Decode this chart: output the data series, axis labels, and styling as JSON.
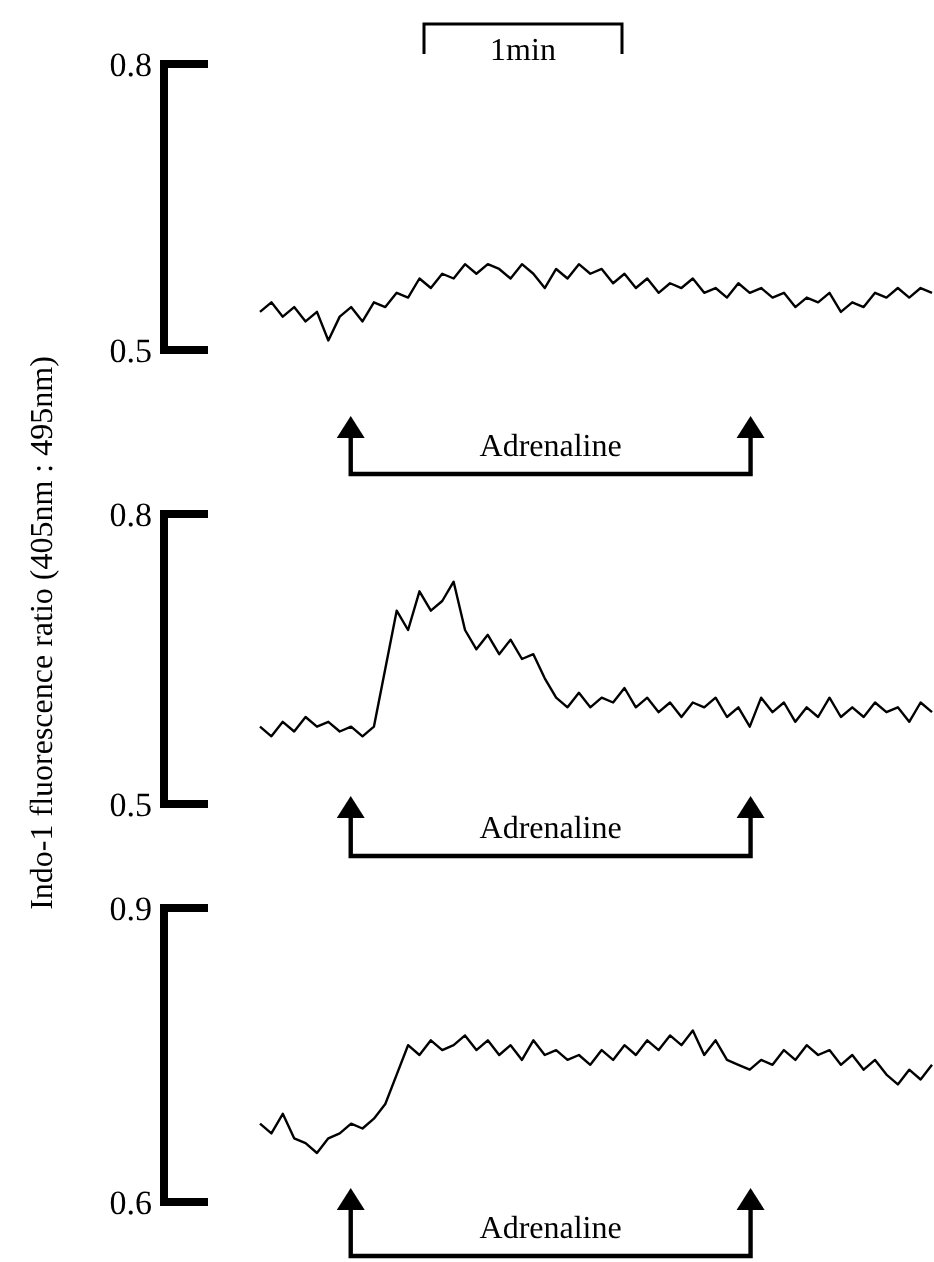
{
  "chart_data": [
    {
      "type": "line",
      "ylabel": "Indo-1 fluorescence ratio (405nm : 495nm)",
      "annotations": [
        "1min",
        "Adrenaline"
      ],
      "categories": [
        null,
        null,
        null,
        null,
        null,
        null,
        null,
        null,
        null,
        null,
        null,
        null,
        null,
        null,
        null,
        null,
        null,
        null,
        null,
        null,
        null,
        null,
        null,
        null,
        null,
        null,
        null,
        null,
        null,
        null,
        null,
        null,
        null,
        null,
        null,
        null,
        null,
        null,
        null,
        null,
        null,
        null,
        null,
        null,
        null,
        null,
        null,
        null,
        null,
        null,
        null,
        null,
        null,
        null,
        null,
        null,
        null,
        null,
        null,
        null
      ],
      "ylim": [
        0.5,
        0.8
      ],
      "yticks": [
        0.5,
        0.8
      ],
      "grid": false,
      "marker": "none",
      "line_style": "solid",
      "series": [
        {
          "color": "#000000",
          "values": [
            0.54,
            0.55,
            0.535,
            0.545,
            0.53,
            0.54,
            0.51,
            0.535,
            0.545,
            0.53,
            0.55,
            0.545,
            0.56,
            0.555,
            0.575,
            0.565,
            0.58,
            0.575,
            0.59,
            0.58,
            0.59,
            0.585,
            0.575,
            0.59,
            0.58,
            0.565,
            0.585,
            0.575,
            0.59,
            0.58,
            0.585,
            0.57,
            0.58,
            0.565,
            0.575,
            0.56,
            0.57,
            0.565,
            0.575,
            0.56,
            0.565,
            0.555,
            0.57,
            0.56,
            0.565,
            0.555,
            0.56,
            0.545,
            0.555,
            0.55,
            0.56,
            0.54,
            0.55,
            0.545,
            0.56,
            0.555,
            0.565,
            0.555,
            0.565,
            0.56
          ]
        }
      ]
    },
    {
      "type": "line",
      "annotations": [
        "Adrenaline"
      ],
      "categories": [
        null,
        null,
        null,
        null,
        null,
        null,
        null,
        null,
        null,
        null,
        null,
        null,
        null,
        null,
        null,
        null,
        null,
        null,
        null,
        null,
        null,
        null,
        null,
        null,
        null,
        null,
        null,
        null,
        null,
        null,
        null,
        null,
        null,
        null,
        null,
        null,
        null,
        null,
        null,
        null,
        null,
        null,
        null,
        null,
        null,
        null,
        null,
        null,
        null,
        null,
        null,
        null,
        null,
        null,
        null,
        null,
        null,
        null,
        null,
        null
      ],
      "ylim": [
        0.5,
        0.8
      ],
      "yticks": [
        0.5,
        0.8
      ],
      "grid": false,
      "marker": "none",
      "line_style": "solid",
      "series": [
        {
          "color": "#000000",
          "values": [
            0.58,
            0.57,
            0.585,
            0.575,
            0.59,
            0.58,
            0.585,
            0.575,
            0.58,
            0.57,
            0.58,
            0.64,
            0.7,
            0.68,
            0.72,
            0.7,
            0.71,
            0.73,
            0.68,
            0.66,
            0.675,
            0.655,
            0.67,
            0.65,
            0.655,
            0.63,
            0.61,
            0.6,
            0.615,
            0.6,
            0.61,
            0.605,
            0.62,
            0.6,
            0.61,
            0.595,
            0.605,
            0.59,
            0.605,
            0.6,
            0.61,
            0.59,
            0.6,
            0.58,
            0.61,
            0.595,
            0.605,
            0.585,
            0.6,
            0.59,
            0.61,
            0.59,
            0.6,
            0.59,
            0.605,
            0.595,
            0.6,
            0.585,
            0.605,
            0.595
          ]
        }
      ]
    },
    {
      "type": "line",
      "annotations": [
        "Adrenaline"
      ],
      "categories": [
        null,
        null,
        null,
        null,
        null,
        null,
        null,
        null,
        null,
        null,
        null,
        null,
        null,
        null,
        null,
        null,
        null,
        null,
        null,
        null,
        null,
        null,
        null,
        null,
        null,
        null,
        null,
        null,
        null,
        null,
        null,
        null,
        null,
        null,
        null,
        null,
        null,
        null,
        null,
        null,
        null,
        null,
        null,
        null,
        null,
        null,
        null,
        null,
        null,
        null,
        null,
        null,
        null,
        null,
        null,
        null,
        null,
        null,
        null,
        null
      ],
      "ylim": [
        0.6,
        0.9
      ],
      "yticks": [
        0.6,
        0.9
      ],
      "grid": false,
      "marker": "none",
      "line_style": "solid",
      "series": [
        {
          "color": "#000000",
          "values": [
            0.68,
            0.67,
            0.69,
            0.665,
            0.66,
            0.65,
            0.665,
            0.67,
            0.68,
            0.675,
            0.685,
            0.7,
            0.73,
            0.76,
            0.75,
            0.765,
            0.755,
            0.76,
            0.77,
            0.755,
            0.765,
            0.75,
            0.76,
            0.745,
            0.765,
            0.75,
            0.755,
            0.745,
            0.75,
            0.74,
            0.755,
            0.745,
            0.76,
            0.75,
            0.765,
            0.755,
            0.77,
            0.76,
            0.775,
            0.75,
            0.765,
            0.745,
            0.74,
            0.735,
            0.745,
            0.74,
            0.755,
            0.745,
            0.76,
            0.75,
            0.755,
            0.74,
            0.75,
            0.735,
            0.745,
            0.73,
            0.72,
            0.735,
            0.725,
            0.74
          ]
        }
      ]
    }
  ]
}
